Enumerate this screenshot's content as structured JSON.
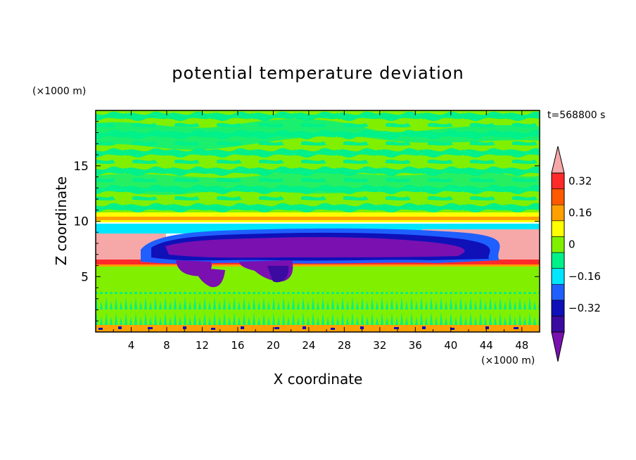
{
  "chart_data": {
    "type": "heatmap",
    "title": "potential temperature deviation",
    "xlabel": "X coordinate",
    "ylabel": "Z coordinate",
    "x_unit": "(×1000 m)",
    "y_unit": "(×1000 m)",
    "time_label": "t=568800 s",
    "xlim": [
      0,
      50
    ],
    "ylim": [
      0,
      20
    ],
    "x_ticks": [
      4,
      8,
      12,
      16,
      20,
      24,
      28,
      32,
      36,
      40,
      44,
      48
    ],
    "y_ticks": [
      5,
      10,
      15
    ],
    "colorbar": {
      "levels": [
        -0.48,
        -0.4,
        -0.32,
        -0.24,
        -0.16,
        -0.08,
        0,
        0.08,
        0.16,
        0.24,
        0.32,
        0.4
      ],
      "colors": [
        "#7a10b0",
        "#3b0aa0",
        "#0f10b8",
        "#1f5fff",
        "#00e6ff",
        "#00f08a",
        "#80f000",
        "#ffff00",
        "#ffa000",
        "#ff5a00",
        "#ff2a2a",
        "#f6a8a8"
      ],
      "tick_labels": [
        "0.32",
        "0.16",
        "0",
        "−0.16",
        "−0.32"
      ],
      "tick_values": [
        0.32,
        0.16,
        0,
        -0.16,
        -0.32
      ]
    },
    "bands": [
      {
        "z_from": 0,
        "z_to": 0.5,
        "anomaly": "mixed"
      },
      {
        "z_from": 0.5,
        "z_to": 3.5,
        "anomaly": -0.04
      },
      {
        "z_from": 3.5,
        "z_to": 6.2,
        "anomaly": 0.04
      },
      {
        "z_from": 6.2,
        "z_to": 6.6,
        "anomaly": 0.36,
        "x_from": 0,
        "x_to": 50
      },
      {
        "z_from": 6.6,
        "z_to": 8.8,
        "anomaly": 0.44,
        "x_range": "edges (x<9, x>37)"
      },
      {
        "z_from": 6.5,
        "z_to": 9.0,
        "anomaly": -0.44,
        "x_from": 9,
        "x_to": 44
      },
      {
        "z_from": 9.5,
        "z_to": 10.5,
        "anomaly": 0.2
      },
      {
        "z_from": 10.5,
        "z_to": 20,
        "anomaly": "0 to -0.08 (mixed)"
      }
    ]
  }
}
